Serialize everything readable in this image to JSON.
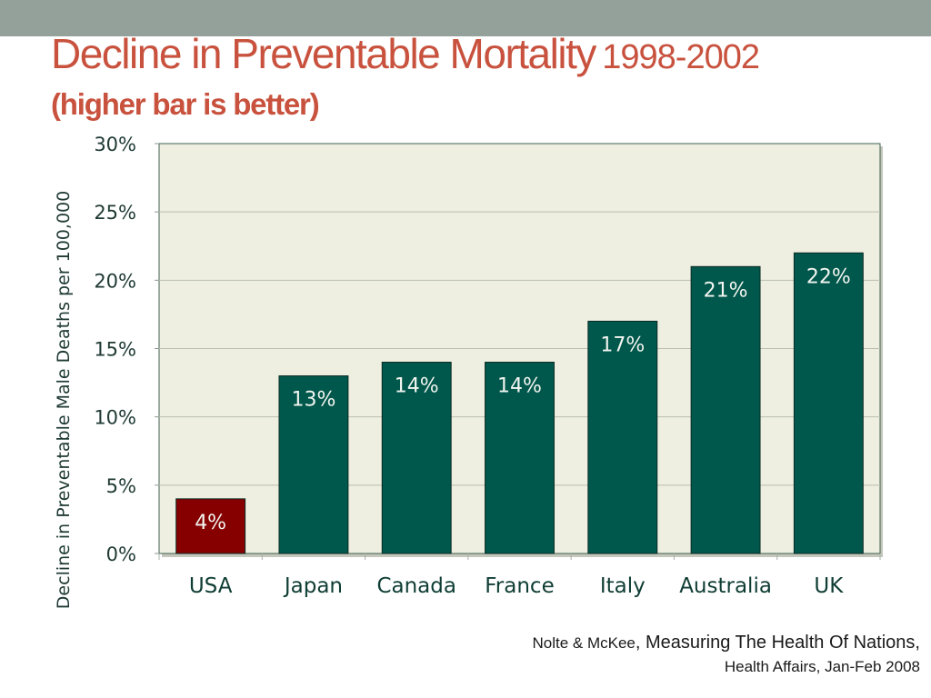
{
  "colors": {
    "band": "#93a19a",
    "title": "#c8523e",
    "plot_bg": "#eeefe0",
    "bar_default": "#00574b",
    "bar_highlight": "#870000",
    "grid": "#b9bfb0",
    "frame": "#3f5f52"
  },
  "slide": {
    "title_main": "Decline in Preventable Mortality",
    "title_years": "1998-2002",
    "subtitle": "(higher bar is better)"
  },
  "chart_data": {
    "type": "bar",
    "title": "Decline in Preventable Mortality 1998-2002",
    "subtitle": "(higher bar is better)",
    "xlabel": "",
    "ylabel": "Decline in Preventable Male Deaths per 100,000",
    "categories": [
      "USA",
      "Japan",
      "Canada",
      "France",
      "Italy",
      "Australia",
      "UK"
    ],
    "values": [
      4,
      13,
      14,
      14,
      17,
      21,
      22
    ],
    "data_labels": [
      "4%",
      "13%",
      "14%",
      "14%",
      "17%",
      "21%",
      "22%"
    ],
    "highlight_category": "USA",
    "ylim": [
      0,
      30
    ],
    "yticks": [
      0,
      5,
      10,
      15,
      20,
      25,
      30
    ],
    "ytick_labels": [
      "0%",
      "5%",
      "10%",
      "15%",
      "20%",
      "25%",
      "30%"
    ],
    "grid": true,
    "legend": "none"
  },
  "source": {
    "authors": "Nolte & McKee",
    "title": "Measuring The Health Of Nations,",
    "journal": "Health Affairs, Jan-Feb 2008"
  }
}
